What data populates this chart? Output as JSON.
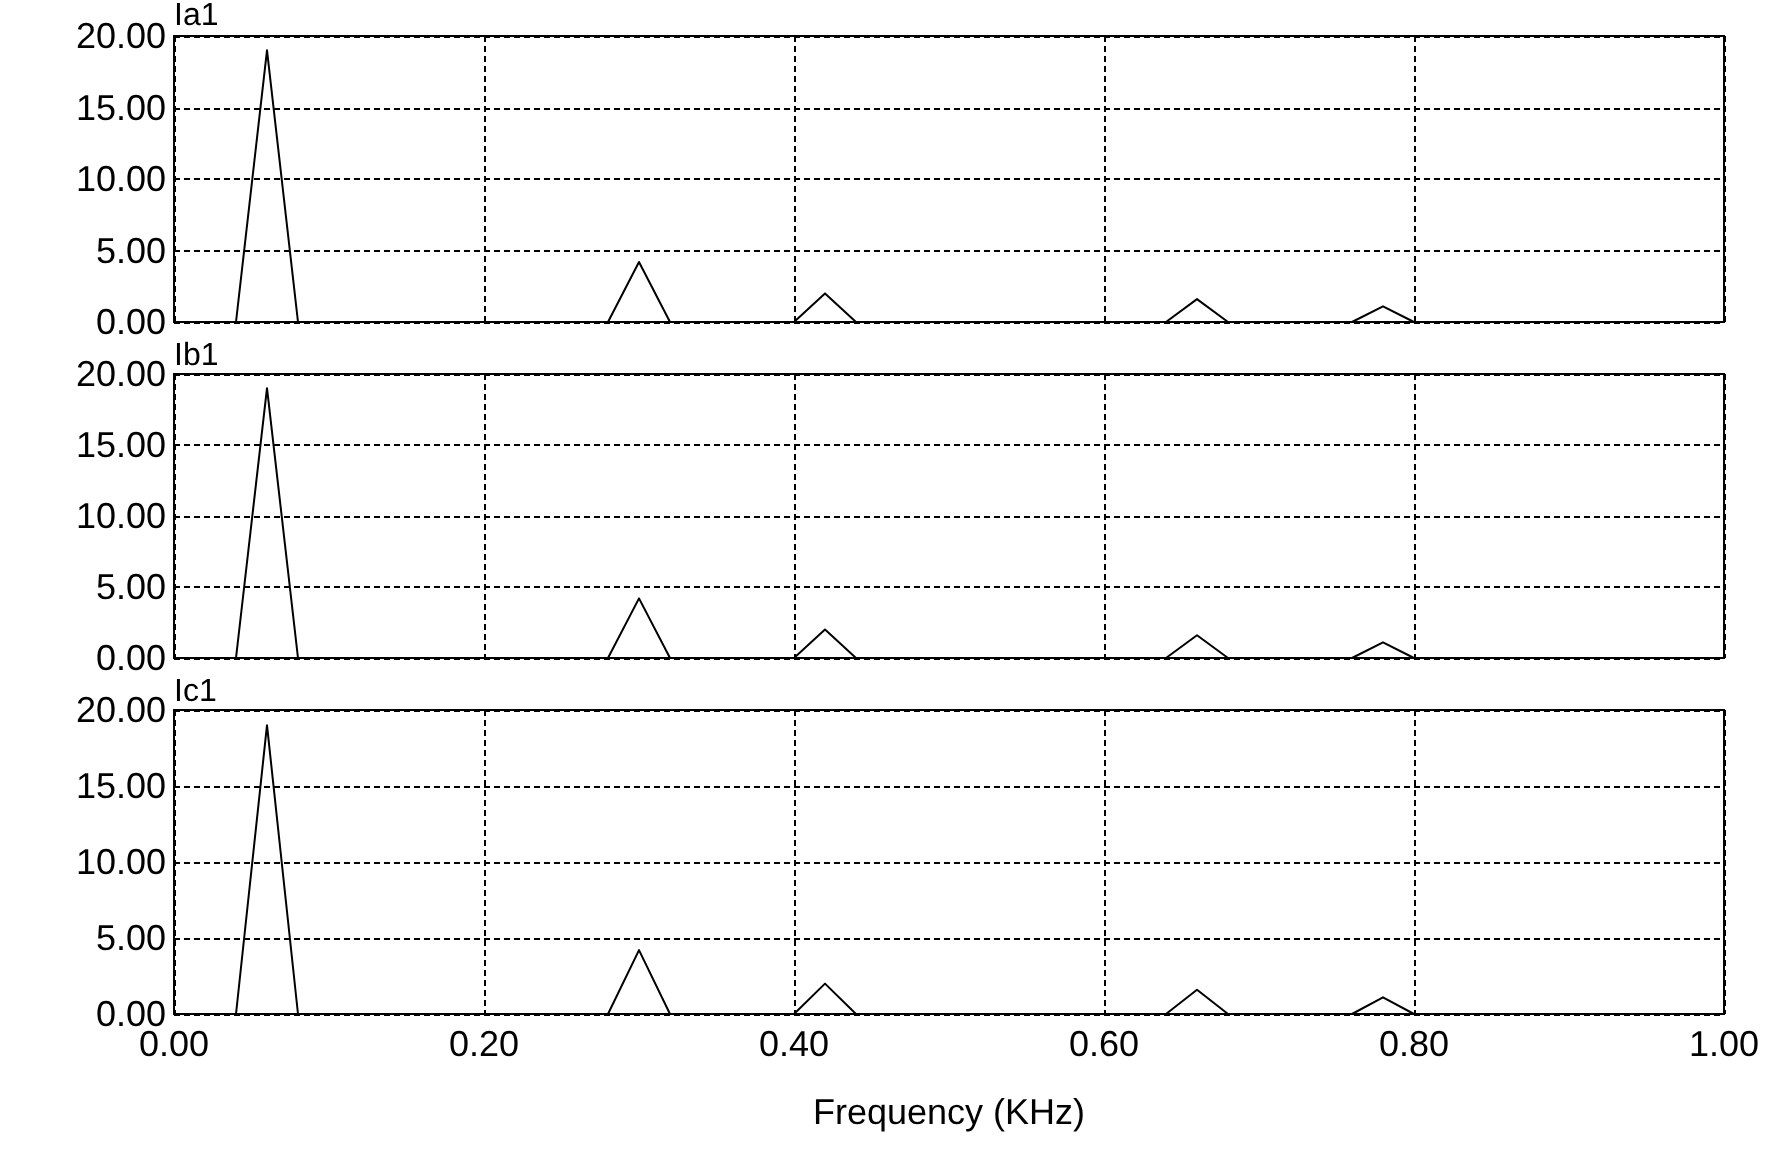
{
  "chart_data": [
    {
      "type": "line",
      "title": "Ia1",
      "x": [
        0,
        0.04,
        0.06,
        0.08,
        0.28,
        0.3,
        0.32,
        0.4,
        0.42,
        0.44,
        0.64,
        0.66,
        0.68,
        0.76,
        0.78,
        0.8,
        1
      ],
      "series": [
        {
          "color": "#000000",
          "values": [
            0,
            0,
            19,
            0,
            0,
            4.2,
            0,
            0,
            2.0,
            0,
            0,
            1.6,
            0,
            0,
            1.1,
            0,
            0
          ]
        }
      ],
      "xlim": [
        0,
        1
      ],
      "ylim": [
        0,
        20
      ],
      "xticks": [
        0,
        0.2,
        0.4,
        0.6,
        0.8,
        1
      ],
      "yticks": [
        {
          "value": 0,
          "label": "0.00"
        },
        {
          "value": 5,
          "label": "5.00"
        },
        {
          "value": 10,
          "label": "10.00"
        },
        {
          "value": 15,
          "label": "15.00"
        },
        {
          "value": 20,
          "label": "20.00"
        }
      ],
      "grid": true,
      "tick_labels": "y"
    },
    {
      "type": "line",
      "title": "Ib1",
      "x": [
        0,
        0.04,
        0.06,
        0.08,
        0.28,
        0.3,
        0.32,
        0.4,
        0.42,
        0.44,
        0.64,
        0.66,
        0.68,
        0.76,
        0.78,
        0.8,
        1
      ],
      "series": [
        {
          "color": "#000000",
          "values": [
            0,
            0,
            19,
            0,
            0,
            4.2,
            0,
            0,
            2.0,
            0,
            0,
            1.6,
            0,
            0,
            1.1,
            0,
            0
          ]
        }
      ],
      "xlim": [
        0,
        1
      ],
      "ylim": [
        0,
        20
      ],
      "xticks": [
        0,
        0.2,
        0.4,
        0.6,
        0.8,
        1
      ],
      "yticks": [
        {
          "value": 0,
          "label": "0.00"
        },
        {
          "value": 5,
          "label": "5.00"
        },
        {
          "value": 10,
          "label": "10.00"
        },
        {
          "value": 15,
          "label": "15.00"
        },
        {
          "value": 20,
          "label": "20.00"
        }
      ],
      "grid": true,
      "tick_labels": "y"
    },
    {
      "type": "line",
      "title": "Ic1",
      "xlabel": "Frequency (KHz)",
      "x": [
        0,
        0.04,
        0.06,
        0.08,
        0.28,
        0.3,
        0.32,
        0.4,
        0.42,
        0.44,
        0.64,
        0.66,
        0.68,
        0.76,
        0.78,
        0.8,
        1
      ],
      "series": [
        {
          "color": "#000000",
          "values": [
            0,
            0,
            19,
            0,
            0,
            4.2,
            0,
            0,
            2.0,
            0,
            0,
            1.6,
            0,
            0,
            1.1,
            0,
            0
          ]
        }
      ],
      "xlim": [
        0,
        1
      ],
      "ylim": [
        0,
        20
      ],
      "xticks": [
        {
          "value": 0,
          "label": "0.00"
        },
        {
          "value": 0.2,
          "label": "0.20"
        },
        {
          "value": 0.4,
          "label": "0.40"
        },
        {
          "value": 0.6,
          "label": "0.60"
        },
        {
          "value": 0.8,
          "label": "0.80"
        },
        {
          "value": 1,
          "label": "1.00"
        }
      ],
      "yticks": [
        {
          "value": 0,
          "label": "0.00"
        },
        {
          "value": 5,
          "label": "5.00"
        },
        {
          "value": 10,
          "label": "10.00"
        },
        {
          "value": 15,
          "label": "15.00"
        },
        {
          "value": 20,
          "label": "20.00"
        }
      ],
      "grid": true
    }
  ]
}
